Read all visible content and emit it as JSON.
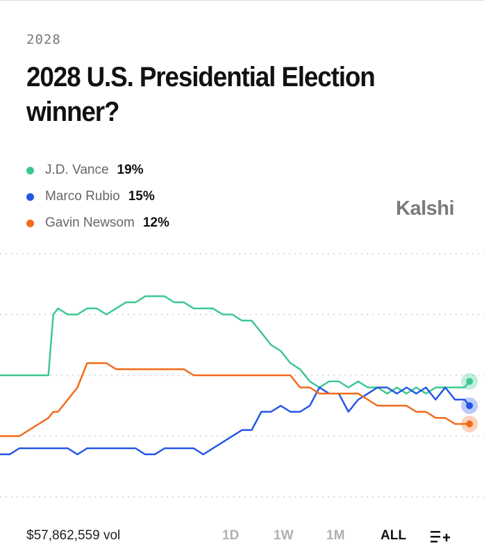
{
  "header": {
    "eyebrow": "2028",
    "title": "2028 U.S. Presidential Election winner?"
  },
  "legend": [
    {
      "name": "J.D. Vance",
      "pct": "19%",
      "color": "#3cc890"
    },
    {
      "name": "Marco Rubio",
      "pct": "15%",
      "color": "#2456e8"
    },
    {
      "name": "Gavin Newsom",
      "pct": "12%",
      "color": "#f26a1a"
    }
  ],
  "brand": {
    "logo": "Kalshi"
  },
  "footer": {
    "volume": "$57,862,559 vol",
    "ranges": [
      "1D",
      "1W",
      "1M",
      "ALL"
    ],
    "active_range": "ALL",
    "queue_icon": "add-to-queue-icon"
  },
  "chart_data": {
    "type": "line",
    "grid": true,
    "gridlines": 5,
    "ylim": [
      0,
      40
    ],
    "x": [
      0,
      2,
      4,
      6,
      8,
      10,
      11,
      12,
      14,
      16,
      18,
      20,
      22,
      24,
      26,
      28,
      30,
      32,
      34,
      36,
      38,
      40,
      42,
      44,
      46,
      48,
      50,
      52,
      54,
      56,
      58,
      60,
      62,
      64,
      66,
      68,
      70,
      72,
      74,
      76,
      78,
      80,
      82,
      84,
      86,
      88,
      90,
      92,
      94,
      96,
      97
    ],
    "series": [
      {
        "name": "J.D. Vance",
        "color": "#3cc890",
        "values": [
          20,
          20,
          20,
          20,
          20,
          20,
          30,
          31,
          30,
          30,
          31,
          31,
          30,
          31,
          32,
          32,
          33,
          33,
          33,
          32,
          32,
          31,
          31,
          31,
          30,
          30,
          29,
          29,
          27,
          25,
          24,
          22,
          21,
          19,
          18,
          19,
          19,
          18,
          19,
          18,
          18,
          17,
          18,
          17,
          18,
          17,
          18,
          18,
          18,
          18,
          19
        ]
      },
      {
        "name": "Marco Rubio",
        "color": "#2456e8",
        "values": [
          7,
          7,
          8,
          8,
          8,
          8,
          8,
          8,
          8,
          7,
          8,
          8,
          8,
          8,
          8,
          8,
          7,
          7,
          8,
          8,
          8,
          8,
          7,
          8,
          9,
          10,
          11,
          11,
          14,
          14,
          15,
          14,
          14,
          15,
          18,
          17,
          17,
          14,
          16,
          17,
          18,
          18,
          17,
          18,
          17,
          18,
          16,
          18,
          16,
          16,
          15
        ]
      },
      {
        "name": "Gavin Newsom",
        "color": "#f26a1a",
        "values": [
          10,
          10,
          10,
          11,
          12,
          13,
          14,
          14,
          16,
          18,
          22,
          22,
          22,
          21,
          21,
          21,
          21,
          21,
          21,
          21,
          21,
          20,
          20,
          20,
          20,
          20,
          20,
          20,
          20,
          20,
          20,
          20,
          18,
          18,
          17,
          17,
          17,
          17,
          17,
          16,
          15,
          15,
          15,
          15,
          14,
          14,
          13,
          13,
          12,
          12,
          12
        ]
      }
    ]
  }
}
